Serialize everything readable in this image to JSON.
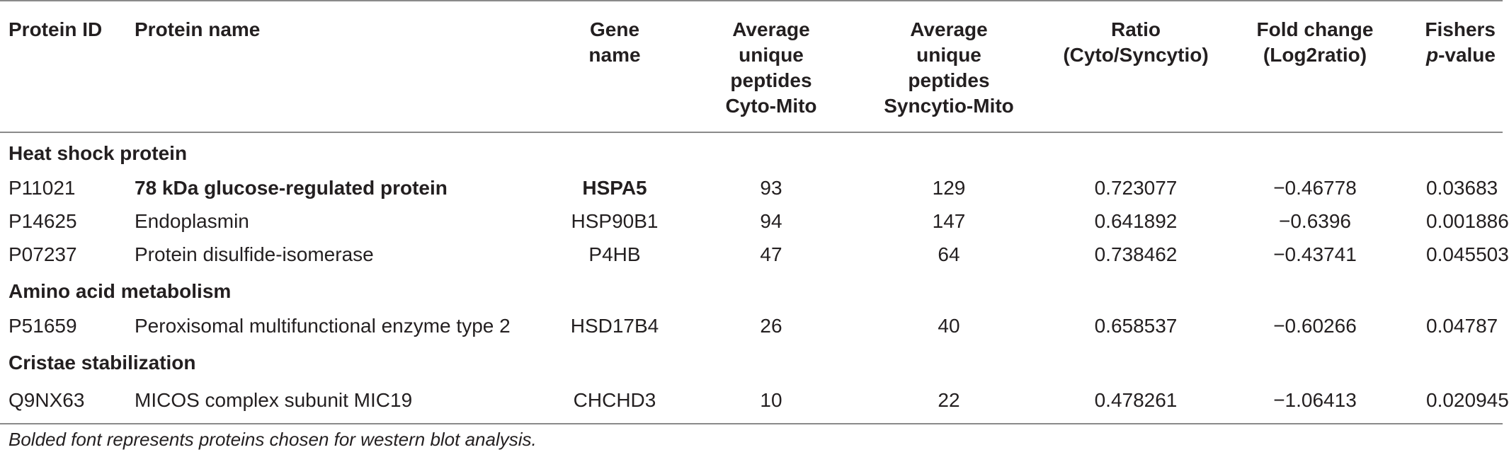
{
  "headers": {
    "protein_id": "Protein ID",
    "protein_name": "Protein name",
    "gene_name": [
      "Gene",
      "name"
    ],
    "avg_cyto": [
      "Average",
      "unique",
      "peptides",
      "Cyto-Mito"
    ],
    "avg_sync": [
      "Average",
      "unique",
      "peptides",
      "Syncytio-Mito"
    ],
    "ratio": [
      "Ratio",
      "(Cyto/Syncytio)"
    ],
    "fold": [
      "Fold change",
      "(Log2ratio)"
    ],
    "fishers_line1": "Fishers",
    "fishers_p": "p",
    "fishers_suffix": "-value"
  },
  "groups": [
    {
      "title": "Heat shock protein",
      "rows": [
        {
          "id": "P11021",
          "name": "78 kDa glucose-regulated protein",
          "gene": "HSPA5",
          "cyto": "93",
          "sync": "129",
          "ratio": "0.723077",
          "fold": "−0.46778",
          "fishers": "0.03683",
          "bold": true
        },
        {
          "id": "P14625",
          "name": "Endoplasmin",
          "gene": "HSP90B1",
          "cyto": "94",
          "sync": "147",
          "ratio": "0.641892",
          "fold": "−0.6396",
          "fishers": "0.001886",
          "bold": false
        },
        {
          "id": "P07237",
          "name": "Protein disulfide-isomerase",
          "gene": "P4HB",
          "cyto": "47",
          "sync": "64",
          "ratio": "0.738462",
          "fold": "−0.43741",
          "fishers": "0.045503",
          "bold": false
        }
      ]
    },
    {
      "title": "Amino acid metabolism",
      "rows": [
        {
          "id": "P51659",
          "name": "Peroxisomal multifunctional enzyme type 2",
          "gene": "HSD17B4",
          "cyto": "26",
          "sync": "40",
          "ratio": "0.658537",
          "fold": "−0.60266",
          "fishers": "0.04787",
          "bold": false
        }
      ]
    },
    {
      "title": "Cristae stabilization",
      "rows": [
        {
          "id": "Q9NX63",
          "name": "MICOS complex subunit MIC19",
          "gene": "CHCHD3",
          "cyto": "10",
          "sync": "22",
          "ratio": "0.478261",
          "fold": "−1.06413",
          "fishers": "0.020945",
          "bold": false
        }
      ]
    }
  ],
  "footnote": "Bolded font represents proteins chosen for western blot analysis."
}
